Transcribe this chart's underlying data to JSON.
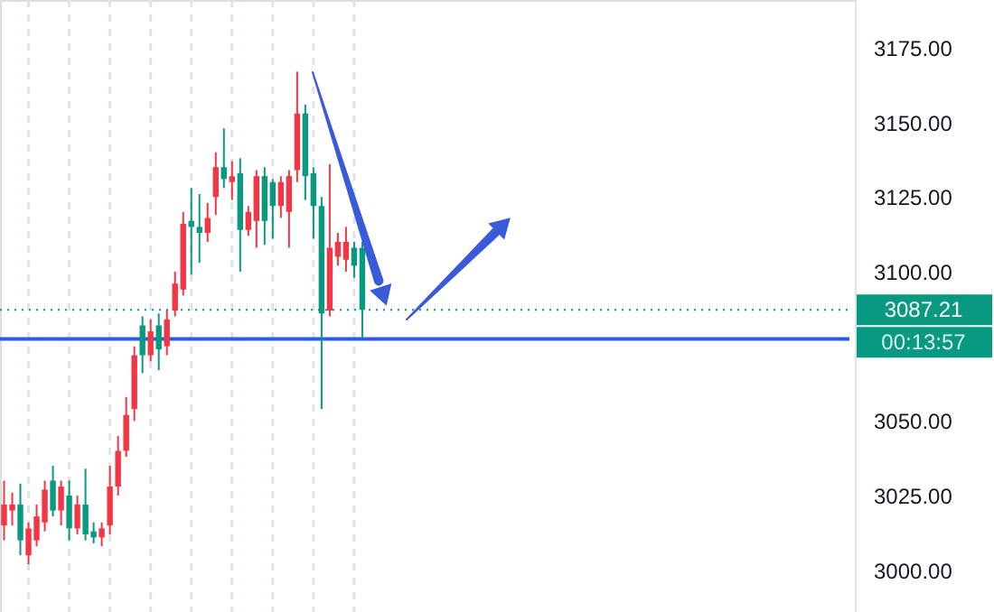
{
  "chart_data": {
    "type": "candlestick",
    "categories": [
      null,
      null,
      null,
      null,
      null,
      null,
      null,
      null,
      null,
      null,
      null,
      null,
      null,
      null,
      null,
      null,
      null,
      null,
      null,
      null,
      null,
      null,
      null,
      null,
      null,
      null,
      null,
      null,
      null,
      null,
      null,
      null,
      null,
      null,
      null,
      null,
      null,
      null,
      null,
      null,
      null,
      null,
      null,
      null,
      null,
      null,
      null,
      null,
      null,
      null,
      null,
      null,
      null,
      null,
      null,
      null,
      null,
      null,
      null,
      null,
      null,
      null,
      null,
      null,
      null,
      null,
      null,
      null,
      null,
      null,
      null,
      null,
      null,
      null,
      null,
      null,
      null,
      null,
      null,
      null,
      null,
      null,
      null,
      null,
      null,
      null,
      null,
      null,
      null,
      null,
      null,
      null,
      null,
      null,
      null,
      null,
      null,
      null,
      null,
      null,
      null,
      null,
      null,
      null,
      null
    ],
    "ohlc": [
      [
        3015,
        3030,
        3010,
        3022
      ],
      [
        3020,
        3026,
        3015,
        3022
      ],
      [
        3022,
        3029,
        3005,
        3010
      ],
      [
        3005,
        3016,
        3002,
        3014
      ],
      [
        3010,
        3022,
        3008,
        3018
      ],
      [
        3016,
        3030,
        3013,
        3027
      ],
      [
        3030,
        3035,
        3018,
        3020
      ],
      [
        3020,
        3030,
        3015,
        3028
      ],
      [
        3025,
        3030,
        3010,
        3014
      ],
      [
        3014,
        3025,
        3012,
        3022
      ],
      [
        3022,
        3034,
        3010,
        3012
      ],
      [
        3013,
        3016,
        3009,
        3011
      ],
      [
        3011,
        3016,
        3008,
        3014
      ],
      [
        3015,
        3035,
        3012,
        3028
      ],
      [
        3028,
        3045,
        3025,
        3040
      ],
      [
        3040,
        3058,
        3038,
        3052
      ],
      [
        3054,
        3075,
        3050,
        3072
      ],
      [
        3082,
        3085,
        3066,
        3072
      ],
      [
        3072,
        3084,
        3070,
        3080
      ],
      [
        3082,
        3086,
        3067,
        3074
      ],
      [
        3075,
        3087,
        3072,
        3084
      ],
      [
        3087,
        3100,
        3085,
        3096
      ],
      [
        3094,
        3120,
        3092,
        3116
      ],
      [
        3117,
        3128,
        3099,
        3115
      ],
      [
        3115,
        3126,
        3103,
        3113
      ],
      [
        3113,
        3123,
        3110,
        3118
      ],
      [
        3125,
        3140,
        3119,
        3135
      ],
      [
        3135,
        3148,
        3128,
        3131
      ],
      [
        3130,
        3137,
        3124,
        3132
      ],
      [
        3133,
        3138,
        3100,
        3114
      ],
      [
        3114,
        3122,
        3112,
        3120
      ],
      [
        3117,
        3134,
        3108,
        3132
      ],
      [
        3132,
        3135,
        3109,
        3117
      ],
      [
        3130,
        3131,
        3111,
        3122
      ],
      [
        3122,
        3132,
        3118,
        3130
      ],
      [
        3120,
        3134,
        3108,
        3132
      ],
      [
        3134,
        3167,
        3130,
        3153
      ],
      [
        3153,
        3156,
        3124,
        3132
      ],
      [
        3133,
        3135,
        3111,
        3122
      ],
      [
        3122,
        3125,
        3054,
        3086
      ],
      [
        3087,
        3136,
        3085,
        3108
      ],
      [
        3105,
        3113,
        3102,
        3110
      ],
      [
        3104,
        3115,
        3100,
        3110
      ],
      [
        3108,
        3110,
        3098,
        3102
      ],
      [
        3108,
        3110,
        3078,
        3087.21
      ],
      null,
      null,
      null,
      null,
      null,
      null,
      null,
      null,
      null,
      null,
      null,
      null,
      null,
      null,
      null,
      null,
      null,
      null,
      null,
      null,
      null,
      null,
      null,
      null,
      null,
      null,
      null,
      null,
      null,
      null,
      null,
      null,
      null,
      null,
      null,
      null,
      null,
      null,
      null,
      null,
      null,
      null,
      null,
      null,
      null,
      null,
      null,
      null,
      null,
      null,
      null,
      null,
      null,
      null,
      null,
      null,
      null,
      null,
      null,
      null
    ],
    "colors": [
      "#f23645",
      "#f23645",
      "#089981",
      "#f23645",
      "#f23645",
      "#f23645",
      "#089981",
      "#f23645",
      "#089981",
      "#f23645",
      "#089981",
      "#089981",
      "#f23645",
      "#f23645",
      "#f23645",
      "#f23645",
      "#f23645",
      "#089981",
      "#f23645",
      "#089981",
      "#f23645",
      "#f23645",
      "#f23645",
      "#089981",
      "#089981",
      "#f23645",
      "#f23645",
      "#089981",
      "#f23645",
      "#089981",
      "#f23645",
      "#f23645",
      "#089981",
      "#089981",
      "#f23645",
      "#f23645",
      "#f23645",
      "#089981",
      "#089981",
      "#089981",
      "#f23645",
      "#f23645",
      "#f23645",
      "#089981",
      "#089981",
      null,
      null,
      null,
      null,
      null,
      null,
      null,
      null,
      null,
      null,
      null,
      null,
      null,
      null,
      null,
      null,
      null,
      null,
      null,
      null,
      null,
      null,
      null,
      null,
      null,
      null,
      null,
      null,
      null,
      null,
      null,
      null,
      null,
      null,
      null,
      null,
      null,
      null,
      null,
      null,
      null,
      null,
      null,
      null,
      null,
      null,
      null,
      null,
      null,
      null,
      null,
      null,
      null,
      null,
      null,
      null,
      null,
      null,
      null,
      null
    ],
    "ylim": [
      2986,
      3191
    ],
    "yticks": [
      {
        "value": 3000,
        "label": "3000.00"
      },
      {
        "value": 3025,
        "label": "3025.00"
      },
      {
        "value": 3050,
        "label": "3050.00"
      },
      {
        "value": 3100,
        "label": "3100.00"
      },
      {
        "value": 3125,
        "label": "3125.00"
      },
      {
        "value": 3150,
        "label": "3150.00"
      },
      {
        "value": 3175,
        "label": "3175.00"
      }
    ],
    "ref_lines": [
      {
        "axis": "y",
        "value": 3087.21,
        "label": "3087.21",
        "color": "#089981",
        "line_style": "dotted"
      },
      {
        "axis": "y",
        "value": 3077.5,
        "color": "#2a5bf0",
        "line_style": "solid"
      }
    ],
    "annotations": [
      "00:13:57"
    ],
    "grid": "x",
    "tick_labels": "y"
  }
}
